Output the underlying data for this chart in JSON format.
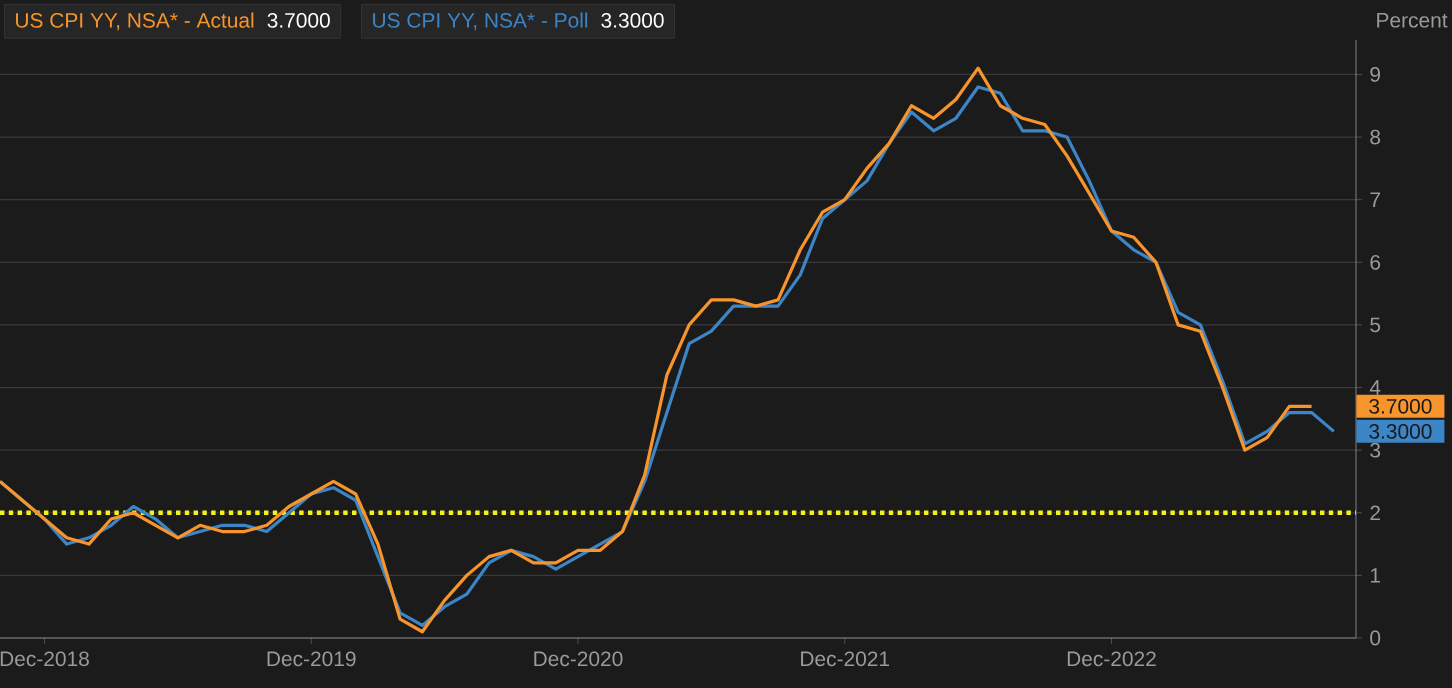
{
  "chart_data": {
    "type": "line",
    "ylabel": "Percent",
    "x": [
      "2018-10",
      "2018-11",
      "2018-12",
      "2019-01",
      "2019-02",
      "2019-03",
      "2019-04",
      "2019-05",
      "2019-06",
      "2019-07",
      "2019-08",
      "2019-09",
      "2019-10",
      "2019-11",
      "2019-12",
      "2020-01",
      "2020-02",
      "2020-03",
      "2020-04",
      "2020-05",
      "2020-06",
      "2020-07",
      "2020-08",
      "2020-09",
      "2020-10",
      "2020-11",
      "2020-12",
      "2021-01",
      "2021-02",
      "2021-03",
      "2021-04",
      "2021-05",
      "2021-06",
      "2021-07",
      "2021-08",
      "2021-09",
      "2021-10",
      "2021-11",
      "2021-12",
      "2022-01",
      "2022-02",
      "2022-03",
      "2022-04",
      "2022-05",
      "2022-06",
      "2022-07",
      "2022-08",
      "2022-09",
      "2022-10",
      "2022-11",
      "2022-12",
      "2023-01",
      "2023-02",
      "2023-03",
      "2023-04",
      "2023-05",
      "2023-06",
      "2023-07",
      "2023-08",
      "2023-09",
      "2023-10"
    ],
    "series": [
      {
        "name": "US CPI YY, NSA* - Poll",
        "color": "#3c85c7",
        "values": [
          2.5,
          2.2,
          1.9,
          1.5,
          1.6,
          1.8,
          2.1,
          1.9,
          1.6,
          1.7,
          1.8,
          1.8,
          1.7,
          2.0,
          2.3,
          2.4,
          2.2,
          1.3,
          0.4,
          0.2,
          0.5,
          0.7,
          1.2,
          1.4,
          1.3,
          1.1,
          1.3,
          1.5,
          1.7,
          2.5,
          3.6,
          4.7,
          4.9,
          5.3,
          5.3,
          5.3,
          5.8,
          6.7,
          7.0,
          7.3,
          7.9,
          8.4,
          8.1,
          8.3,
          8.8,
          8.7,
          8.1,
          8.1,
          8.0,
          7.3,
          6.5,
          6.2,
          6.0,
          5.2,
          5.0,
          4.1,
          3.1,
          3.3,
          3.6,
          3.6,
          3.3
        ]
      },
      {
        "name": "US CPI YY, NSA* - Actual",
        "color": "#f7952c",
        "values": [
          2.5,
          2.2,
          1.9,
          1.6,
          1.5,
          1.9,
          2.0,
          1.8,
          1.6,
          1.8,
          1.7,
          1.7,
          1.8,
          2.1,
          2.3,
          2.5,
          2.3,
          1.5,
          0.3,
          0.1,
          0.6,
          1.0,
          1.3,
          1.4,
          1.2,
          1.2,
          1.4,
          1.4,
          1.7,
          2.6,
          4.2,
          5.0,
          5.4,
          5.4,
          5.3,
          5.4,
          6.2,
          6.8,
          7.0,
          7.5,
          7.9,
          8.5,
          8.3,
          8.6,
          9.1,
          8.5,
          8.3,
          8.2,
          7.7,
          7.1,
          6.5,
          6.4,
          6.0,
          5.0,
          4.9,
          4.0,
          3.0,
          3.2,
          3.7,
          3.7,
          null
        ]
      }
    ],
    "annotations": [
      "3.3000",
      "3.7000"
    ],
    "xlim": [
      "2018-10",
      "2023-11"
    ],
    "ylim": [
      0,
      9.55
    ],
    "xticks": [
      {
        "value": "2018-12",
        "label": "Dec-2018"
      },
      {
        "value": "2019-12",
        "label": "Dec-2019"
      },
      {
        "value": "2020-12",
        "label": "Dec-2020"
      },
      {
        "value": "2021-12",
        "label": "Dec-2021"
      },
      {
        "value": "2022-12",
        "label": "Dec-2022"
      }
    ],
    "yticks": [
      0,
      1,
      2,
      3,
      4,
      5,
      6,
      7,
      8,
      9
    ],
    "ref_lines": [
      {
        "axis": "y",
        "value": 2,
        "color": "#f5f01a",
        "line_style": "dotted"
      }
    ],
    "grid": "y",
    "legend": "top left",
    "marker": "none",
    "line_style": "solid"
  }
}
